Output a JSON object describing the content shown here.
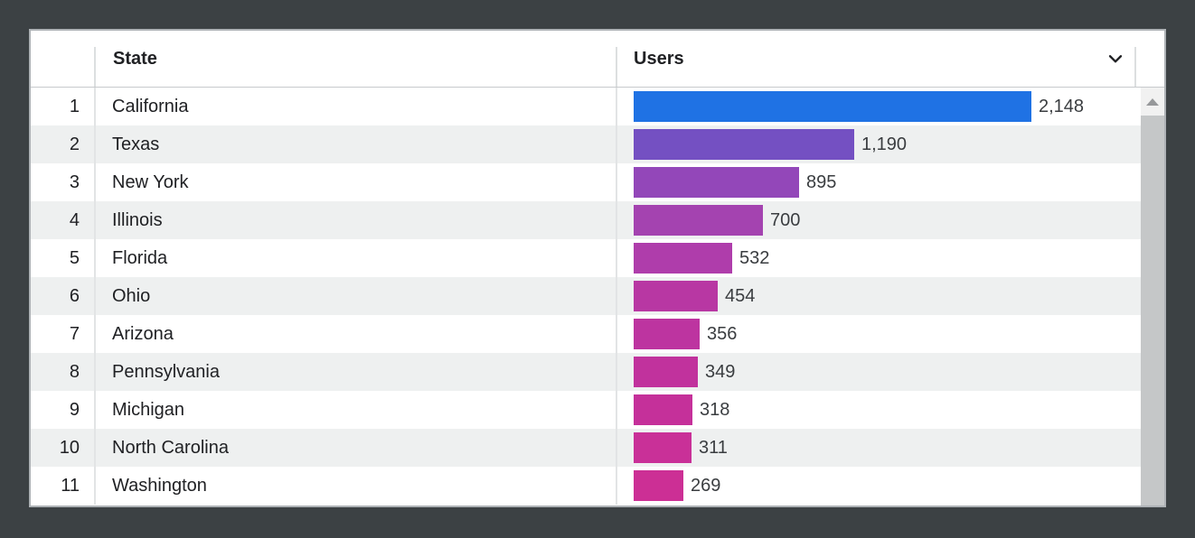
{
  "theme": {
    "page_bg": "#3c4144",
    "table_bg": "#ffffff",
    "table_border": "#aeb2b6",
    "header_text": "#202124",
    "header_border": "#c7cacc",
    "header_divider": "#dcdfe0",
    "row_divider": "#e2e4e5",
    "row_text": "#202124",
    "value_text": "#3a3d40",
    "stripe_bg": "#eef0f0",
    "scrollbar_track": "#f1f1f1",
    "scrollbar_button_bg": "#f1f1f1",
    "scrollbar_arrow": "#96989a",
    "scrollbar_thumb": "#c5c7c8",
    "bar_blue": "#1f72e4",
    "bar_magenta": "#cc2f95"
  },
  "header": {
    "index_label": "",
    "state_label": "State",
    "users_label": "Users",
    "sort_icon": "chevron-down-icon"
  },
  "table": {
    "max_users": 2148,
    "rows": [
      {
        "rank": "1",
        "state": "California",
        "users": 2148,
        "users_label": "2,148",
        "color": "#1f72e4"
      },
      {
        "rank": "2",
        "state": "Texas",
        "users": 1190,
        "users_label": "1,190",
        "color": "#7450c2"
      },
      {
        "rank": "3",
        "state": "New York",
        "users": 895,
        "users_label": "895",
        "color": "#9347b9"
      },
      {
        "rank": "4",
        "state": "Illinois",
        "users": 700,
        "users_label": "700",
        "color": "#a443b0"
      },
      {
        "rank": "5",
        "state": "Florida",
        "users": 532,
        "users_label": "532",
        "color": "#af3dab"
      },
      {
        "rank": "6",
        "state": "Ohio",
        "users": 454,
        "users_label": "454",
        "color": "#b837a3"
      },
      {
        "rank": "7",
        "state": "Arizona",
        "users": 356,
        "users_label": "356",
        "color": "#bd34a0"
      },
      {
        "rank": "8",
        "state": "Pennsylvania",
        "users": 349,
        "users_label": "349",
        "color": "#c1329d"
      },
      {
        "rank": "9",
        "state": "Michigan",
        "users": 318,
        "users_label": "318",
        "color": "#c5309a"
      },
      {
        "rank": "10",
        "state": "North Carolina",
        "users": 311,
        "users_label": "311",
        "color": "#c93098"
      },
      {
        "rank": "11",
        "state": "Washington",
        "users": 269,
        "users_label": "269",
        "color": "#cc2f95"
      }
    ]
  },
  "chart_data": {
    "type": "bar",
    "orientation": "horizontal",
    "title": "",
    "xlabel": "Users",
    "ylabel": "State",
    "categories": [
      "California",
      "Texas",
      "New York",
      "Illinois",
      "Florida",
      "Ohio",
      "Arizona",
      "Pennsylvania",
      "Michigan",
      "North Carolina",
      "Washington"
    ],
    "values": [
      2148,
      1190,
      895,
      700,
      532,
      454,
      356,
      349,
      318,
      311,
      269
    ],
    "value_labels": [
      "2,148",
      "1,190",
      "895",
      "700",
      "532",
      "454",
      "356",
      "349",
      "318",
      "311",
      "269"
    ],
    "ranks": [
      1,
      2,
      3,
      4,
      5,
      6,
      7,
      8,
      9,
      10,
      11
    ],
    "xlim": [
      0,
      2148
    ],
    "grid": false,
    "legend": false,
    "bar_colors": [
      "#1f72e4",
      "#7450c2",
      "#9347b9",
      "#a443b0",
      "#af3dab",
      "#b837a3",
      "#bd34a0",
      "#c1329d",
      "#c5309a",
      "#c93098",
      "#cc2f95"
    ]
  }
}
